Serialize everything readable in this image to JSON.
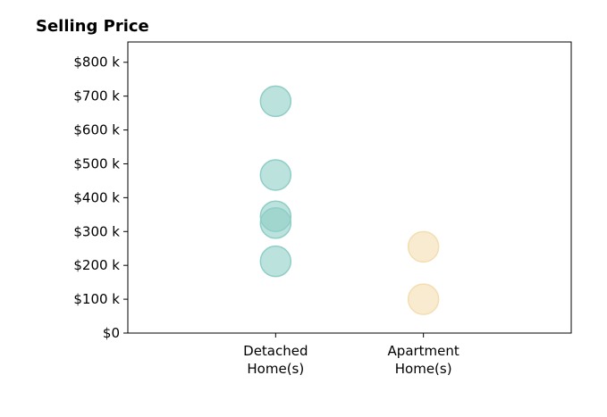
{
  "chart_data": {
    "type": "scatter",
    "title": "Selling Price",
    "xlabel": "",
    "ylabel": "",
    "categories": [
      "Detached\nHome(s)",
      "Apartment\nHome(s)"
    ],
    "y_tick_labels": [
      "$0",
      "$100 k",
      "$200 k",
      "$300 k",
      "$400 k",
      "$500 k",
      "$600 k",
      "$700 k",
      "$800 k"
    ],
    "y_ticks": [
      0,
      100000,
      200000,
      300000,
      400000,
      500000,
      600000,
      700000,
      800000
    ],
    "ylim": [
      0,
      860000
    ],
    "xlim": [
      -1,
      2
    ],
    "grid": false,
    "series": [
      {
        "category": "Detached\nHome(s)",
        "values": [
          685000,
          467000,
          345000,
          325000,
          212000
        ],
        "color": "#8fcec7"
      },
      {
        "category": "Apartment\nHome(s)",
        "values": [
          255000,
          100000
        ],
        "color": "#f4deb1"
      }
    ]
  }
}
